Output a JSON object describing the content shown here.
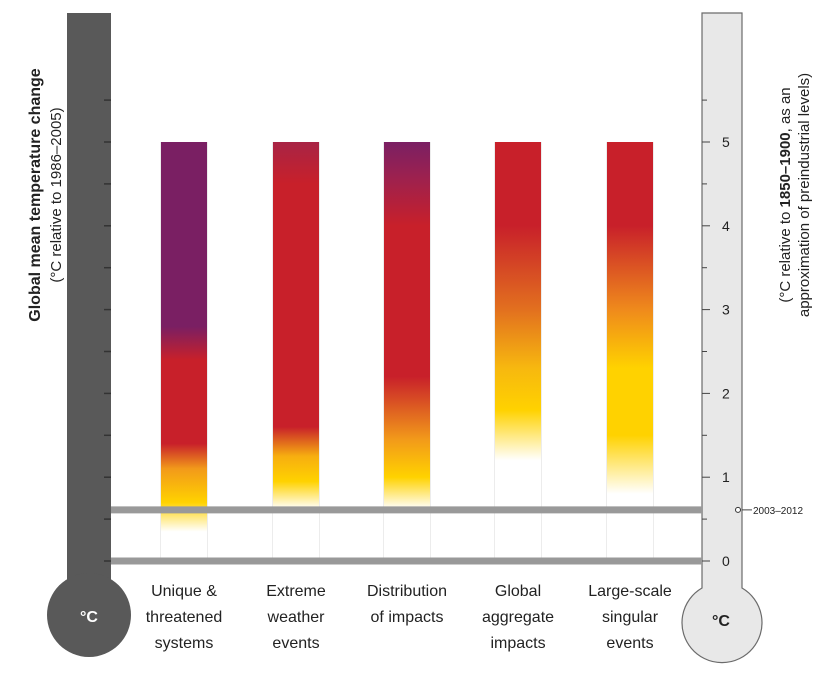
{
  "chart_data": {
    "type": "bar",
    "title": "",
    "left_axis": {
      "label_main": "Global mean temperature change",
      "label_sub": "(°C relative to 1986–2005)",
      "unit_symbol": "°C"
    },
    "right_axis": {
      "label_line1_prefix": "(°C relative to ",
      "label_line1_bold": "1850–1900",
      "label_line1_suffix": ", as an",
      "label_line2": "approximation of preindustrial levels)",
      "unit_symbol": "°C",
      "ylim": [
        0,
        5.9
      ],
      "ticks": [
        "0",
        "1",
        "2",
        "3",
        "4",
        "5"
      ],
      "tick_values": [
        0,
        1,
        2,
        3,
        4,
        5
      ]
    },
    "reference_line": {
      "label": "2003–2012",
      "value": 0.61
    },
    "baseline": {
      "value": 0
    },
    "categories": [
      [
        "Unique &",
        "threatened",
        "systems"
      ],
      [
        "Extreme",
        "weather",
        "events"
      ],
      [
        "Distribution",
        "of impacts"
      ],
      [
        "Global",
        "aggregate",
        "impacts"
      ],
      [
        "Large-scale",
        "singular",
        "events"
      ]
    ],
    "bar_top_value": 5.0,
    "legend_colors": {
      "undetectable": "#ffffff",
      "moderate": "#ffd200",
      "high": "#c8202a",
      "very_high": "#7a1f63"
    },
    "series": [
      {
        "stops": [
          [
            0.0,
            "#ffffff"
          ],
          [
            0.35,
            "#ffffff"
          ],
          [
            0.7,
            "#ffd200"
          ],
          [
            1.1,
            "#f29a1a"
          ],
          [
            1.4,
            "#c8202a"
          ],
          [
            2.4,
            "#c8202a"
          ],
          [
            2.8,
            "#7a1f63"
          ],
          [
            5.0,
            "#7a1f63"
          ]
        ]
      },
      {
        "stops": [
          [
            0.0,
            "#ffffff"
          ],
          [
            0.62,
            "#ffffff"
          ],
          [
            0.95,
            "#ffd200"
          ],
          [
            1.25,
            "#f7ae10"
          ],
          [
            1.6,
            "#c8202a"
          ],
          [
            4.5,
            "#c8202a"
          ],
          [
            5.0,
            "#a82445"
          ]
        ]
      },
      {
        "stops": [
          [
            0.0,
            "#ffffff"
          ],
          [
            0.62,
            "#ffffff"
          ],
          [
            1.0,
            "#ffd200"
          ],
          [
            1.45,
            "#f29a1a"
          ],
          [
            2.2,
            "#c8202a"
          ],
          [
            4.0,
            "#c8202a"
          ],
          [
            4.6,
            "#9b2150"
          ],
          [
            5.0,
            "#7a1f63"
          ]
        ]
      },
      {
        "stops": [
          [
            0.0,
            "#ffffff"
          ],
          [
            1.2,
            "#ffffff"
          ],
          [
            1.8,
            "#ffd200"
          ],
          [
            2.3,
            "#f7b80f"
          ],
          [
            3.0,
            "#e2701f"
          ],
          [
            4.0,
            "#c8202a"
          ],
          [
            5.0,
            "#c8202a"
          ]
        ]
      },
      {
        "stops": [
          [
            0.0,
            "#ffffff"
          ],
          [
            0.8,
            "#ffffff"
          ],
          [
            1.5,
            "#ffd200"
          ],
          [
            2.3,
            "#ffd200"
          ],
          [
            3.0,
            "#ef8a1c"
          ],
          [
            4.0,
            "#c8202a"
          ],
          [
            5.0,
            "#c8202a"
          ]
        ]
      }
    ]
  }
}
